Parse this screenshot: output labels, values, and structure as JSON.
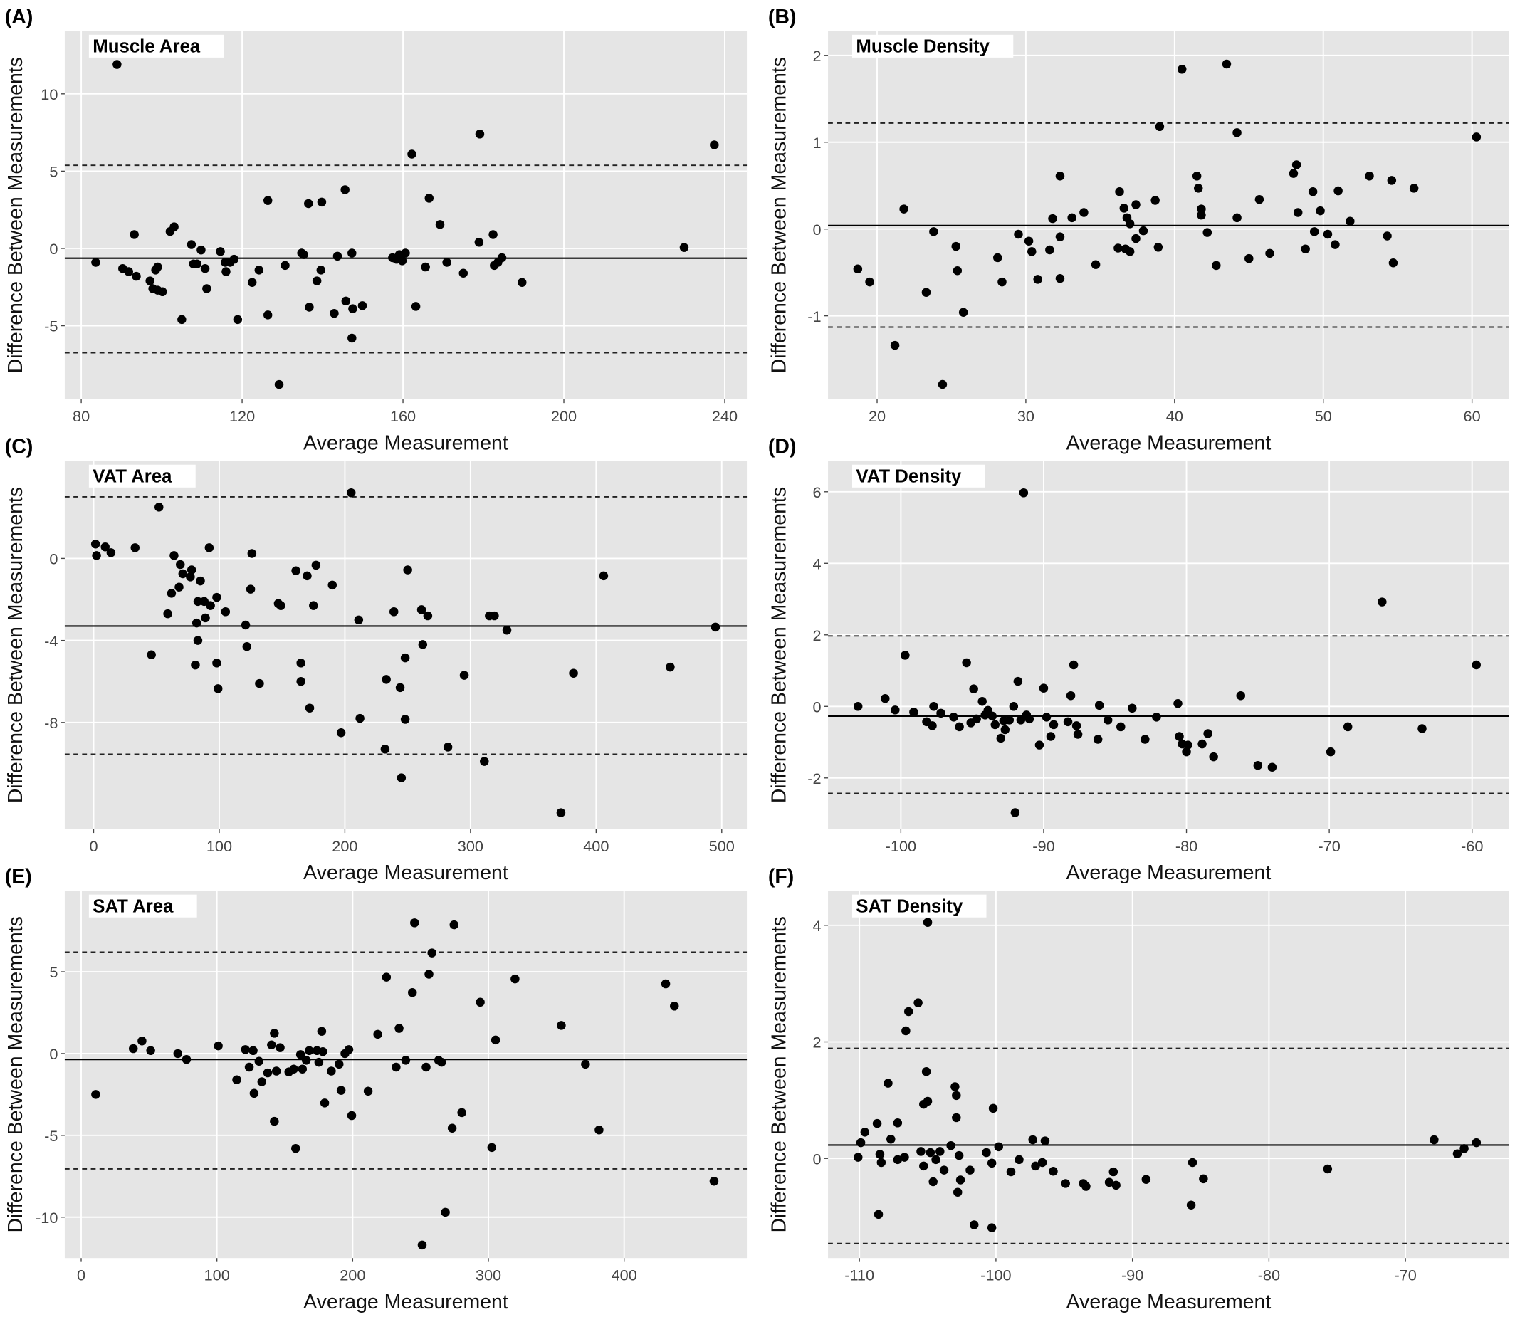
{
  "chart_data": [
    {
      "type": "scatter",
      "panel_label": "(A)",
      "title": "Muscle Area",
      "x_label": "Average Measurement",
      "y_label": "Difference Between Measurements",
      "color": "#000000",
      "grid": true,
      "xlim": [
        75.9,
        245.5
      ],
      "ylim": [
        -9.75,
        14.06
      ],
      "xticks": [
        80,
        120,
        160,
        200,
        240
      ],
      "yticks": [
        -5,
        0,
        5,
        10
      ],
      "mean_line": -0.63,
      "upper_limit": 5.38,
      "lower_limit": -6.75,
      "x": [
        83.6,
        88.9,
        90.3,
        91.8,
        93.2,
        93.7,
        97.1,
        97.8,
        98.5,
        99,
        99,
        100.2,
        102.1,
        103.1,
        105,
        107.4,
        107.9,
        108.8,
        109.8,
        110.8,
        111.2,
        114.6,
        115.8,
        116,
        117,
        118,
        118.9,
        122.5,
        124.2,
        126.4,
        126.4,
        129.2,
        130.7,
        134.8,
        135.3,
        136.5,
        136.7,
        138.6,
        139.6,
        139.8,
        142.9,
        143.7,
        145.6,
        145.8,
        147.3,
        147.3,
        147.5,
        149.9,
        157.4,
        158.4,
        159.1,
        159.8,
        160.6,
        162.2,
        163.2,
        165.6,
        166.5,
        169.2,
        170.9,
        175,
        178.9,
        179.1,
        182.4,
        182.7,
        183.6,
        184.6,
        189.6,
        229.9,
        237.4
      ],
      "values": [
        -0.9,
        11.9,
        -1.3,
        -1.5,
        0.9,
        -1.8,
        -2.1,
        -2.6,
        -1.4,
        -1.2,
        -2.7,
        -2.8,
        1.1,
        1.4,
        -4.6,
        0.25,
        -1,
        -1,
        -0.1,
        -1.3,
        -2.6,
        -0.2,
        -0.9,
        -1.5,
        -0.9,
        -0.7,
        -4.6,
        -2.2,
        -1.4,
        3.1,
        -4.3,
        -8.8,
        -1.1,
        -0.3,
        -0.4,
        2.9,
        -3.8,
        -2.1,
        -1.4,
        3,
        -4.2,
        -0.5,
        3.8,
        -3.4,
        -0.3,
        -5.8,
        -3.9,
        -3.7,
        -0.6,
        -0.7,
        -0.4,
        -0.8,
        -0.3,
        6.1,
        -3.75,
        -1.2,
        3.25,
        1.55,
        -0.9,
        -1.6,
        0.4,
        7.4,
        0.9,
        -1.1,
        -0.9,
        -0.6,
        -2.2,
        0.06,
        6.7
      ]
    },
    {
      "type": "scatter",
      "panel_label": "(B)",
      "title": "Muscle Density",
      "x_label": "Average Measurement",
      "y_label": "Difference Between Measurements",
      "color": "#000000",
      "grid": true,
      "xlim": [
        16.7,
        62.5
      ],
      "ylim": [
        -1.96,
        2.28
      ],
      "xticks": [
        20,
        30,
        40,
        50,
        60
      ],
      "yticks": [
        -1,
        0,
        1,
        2
      ],
      "mean_line": 0.04,
      "upper_limit": 1.22,
      "lower_limit": -1.13,
      "x": [
        18.7,
        19.5,
        21.2,
        21.8,
        23.3,
        23.8,
        24.4,
        25.3,
        25.4,
        25.8,
        28.1,
        28.4,
        29.5,
        30.2,
        30.4,
        30.8,
        31.6,
        31.8,
        32.3,
        32.3,
        32.3,
        33.1,
        33.9,
        34.7,
        36.3,
        36.2,
        36.6,
        36.7,
        36.8,
        37,
        37,
        37.4,
        37.4,
        37.9,
        38.7,
        38.9,
        39,
        40.5,
        41.5,
        41.6,
        41.8,
        41.8,
        42.2,
        42.8,
        43.5,
        44.2,
        44.2,
        45,
        45.7,
        46.4,
        48,
        48.2,
        48.3,
        48.8,
        49.3,
        49.4,
        49.8,
        50.3,
        50.8,
        51,
        51.8,
        53.1,
        54.3,
        54.6,
        54.7,
        56.1,
        60.3
      ],
      "values": [
        -0.46,
        -0.61,
        -1.34,
        0.23,
        -0.73,
        -0.03,
        -1.79,
        -0.2,
        -0.48,
        -0.96,
        -0.33,
        -0.61,
        -0.06,
        -0.14,
        -0.26,
        -0.58,
        -0.24,
        0.12,
        0.61,
        -0.09,
        -0.57,
        0.13,
        0.19,
        -0.41,
        0.43,
        -0.22,
        0.24,
        -0.23,
        0.13,
        0.06,
        -0.26,
        0.28,
        -0.11,
        -0.02,
        0.33,
        -0.21,
        1.18,
        1.84,
        0.61,
        0.47,
        0.23,
        0.16,
        -0.04,
        -0.42,
        1.9,
        1.11,
        0.13,
        -0.34,
        0.34,
        -0.28,
        0.64,
        0.74,
        0.19,
        -0.23,
        0.43,
        -0.03,
        0.21,
        -0.06,
        -0.18,
        0.44,
        0.09,
        0.61,
        -0.08,
        0.56,
        -0.39,
        0.47,
        1.06
      ]
    },
    {
      "type": "scatter",
      "panel_label": "(C)",
      "title": "VAT Area",
      "x_label": "Average Measurement",
      "y_label": "Difference Between Measurements",
      "color": "#000000",
      "grid": true,
      "xlim": [
        -23,
        520
      ],
      "ylim": [
        -13.2,
        4.75
      ],
      "xticks": [
        0,
        100,
        200,
        300,
        400,
        500
      ],
      "yticks": [
        -8,
        -4,
        0
      ],
      "mean_line": -3.3,
      "upper_limit": 3.0,
      "lower_limit": -9.55,
      "x": [
        1.5,
        2.3,
        9.2,
        13.8,
        33,
        46,
        52,
        59,
        62,
        64,
        68,
        69,
        71,
        77,
        78,
        81,
        82,
        83,
        83,
        85,
        88,
        89,
        92,
        93,
        98,
        98,
        99,
        105,
        121,
        122,
        125,
        126,
        132,
        147,
        149,
        161,
        165,
        165,
        170,
        172,
        175,
        177,
        190,
        197,
        205,
        211,
        212,
        232,
        233,
        239,
        244,
        245,
        248,
        248,
        250,
        261,
        262,
        266,
        282,
        295,
        311,
        315,
        319,
        329,
        372,
        382,
        406,
        459,
        495
      ],
      "values": [
        0.7,
        0.14,
        0.56,
        0.28,
        0.52,
        -4.7,
        2.5,
        -2.7,
        -1.7,
        0.14,
        -1.4,
        -0.3,
        -0.75,
        -0.9,
        -0.56,
        -5.2,
        -3.15,
        -4,
        -2.1,
        -1.1,
        -2.1,
        -2.9,
        0.52,
        -2.3,
        -5.1,
        -1.9,
        -6.35,
        -2.6,
        -3.25,
        -4.3,
        -1.5,
        0.24,
        -6.1,
        -2.2,
        -2.3,
        -0.6,
        -5.1,
        -6,
        -0.85,
        -7.3,
        -2.3,
        -0.33,
        -1.3,
        -8.5,
        3.2,
        -3,
        -7.8,
        -9.3,
        -5.9,
        -2.6,
        -6.3,
        -10.7,
        -4.85,
        -7.85,
        -0.56,
        -2.5,
        -4.2,
        -2.8,
        -9.2,
        -5.7,
        -9.9,
        -2.8,
        -2.8,
        -3.5,
        -12.4,
        -5.6,
        -0.85,
        -5.3,
        -3.35
      ]
    },
    {
      "type": "scatter",
      "panel_label": "(D)",
      "title": "VAT Density",
      "x_label": "Average Measurement",
      "y_label": "Difference Between Measurements",
      "color": "#000000",
      "grid": true,
      "xlim": [
        -105.1,
        -57.4
      ],
      "ylim": [
        -3.43,
        6.86
      ],
      "xticks": [
        -100,
        -90,
        -80,
        -70,
        -60
      ],
      "yticks": [
        -2,
        0,
        2,
        4,
        6
      ],
      "mean_line": -0.27,
      "upper_limit": 1.97,
      "lower_limit": -2.43,
      "x": [
        -103,
        -101.1,
        -100.4,
        -99.7,
        -99.1,
        -98.2,
        -97.8,
        -97.7,
        -97.2,
        -96.3,
        -95.9,
        -95.4,
        -95.1,
        -94.9,
        -94.7,
        -94.3,
        -94.1,
        -93.9,
        -93.6,
        -93.4,
        -93,
        -92.8,
        -92.7,
        -92.4,
        -92.1,
        -92,
        -91.8,
        -91.6,
        -91.4,
        -91.2,
        -91,
        -90.3,
        -90,
        -89.8,
        -89.5,
        -89.3,
        -88.3,
        -88.1,
        -87.9,
        -87.7,
        -87.6,
        -86.1,
        -86.2,
        -85.5,
        -84.6,
        -83.8,
        -82.9,
        -82.1,
        -80.6,
        -80.5,
        -80.3,
        -80,
        -79.9,
        -78.9,
        -78.5,
        -78.1,
        -76.2,
        -75,
        -74,
        -69.9,
        -68.7,
        -66.3,
        -63.5,
        -59.7
      ],
      "values": [
        0,
        0.22,
        -0.1,
        1.43,
        -0.16,
        -0.43,
        -0.54,
        0,
        -0.19,
        -0.3,
        -0.57,
        1.22,
        -0.46,
        0.49,
        -0.35,
        0.14,
        -0.24,
        -0.11,
        -0.27,
        -0.51,
        -0.89,
        -0.4,
        -0.65,
        -0.38,
        0,
        -2.97,
        0.7,
        -0.38,
        5.97,
        -0.24,
        -0.35,
        -1.08,
        0.51,
        -0.3,
        -0.84,
        -0.51,
        -0.43,
        0.3,
        1.16,
        -0.54,
        -0.78,
        0.03,
        -0.92,
        -0.38,
        -0.57,
        -0.05,
        -0.92,
        -0.3,
        0.08,
        -0.84,
        -1.05,
        -1.27,
        -1.08,
        -1.05,
        -0.76,
        -1.41,
        0.3,
        -1.65,
        -1.7,
        -1.27,
        -0.57,
        2.92,
        -0.62,
        1.16
      ]
    },
    {
      "type": "scatter",
      "panel_label": "(E)",
      "title": "SAT Area",
      "x_label": "Average Measurement",
      "y_label": "Difference Between Measurements",
      "color": "#000000",
      "grid": true,
      "xlim": [
        -12.1,
        490.4
      ],
      "ylim": [
        -12.5,
        9.94
      ],
      "xticks": [
        0,
        100,
        200,
        300,
        400
      ],
      "yticks": [
        -10,
        -5,
        0,
        5
      ],
      "mean_line": -0.36,
      "upper_limit": 6.2,
      "lower_limit": -7.05,
      "x": [
        10.7,
        38.4,
        44.8,
        51.2,
        71.2,
        77.6,
        101,
        114.6,
        121,
        123.8,
        126.7,
        127.4,
        131,
        133.1,
        137.4,
        140.2,
        142.3,
        142.3,
        143.8,
        146.6,
        153,
        156.6,
        158,
        161.6,
        163,
        165.8,
        168,
        173.7,
        175.1,
        177.2,
        178,
        179.4,
        184.3,
        190,
        191.5,
        194.3,
        197.2,
        199.3,
        211.4,
        218.5,
        224.9,
        232,
        234.2,
        239.1,
        244,
        245.6,
        254.1,
        251.2,
        256.2,
        258.4,
        263.3,
        265.5,
        268.3,
        273.3,
        274.7,
        280.4,
        294,
        302.5,
        305.3,
        319.6,
        353.7,
        371.5,
        381.5,
        430.6,
        437,
        466.2
      ],
      "values": [
        -2.5,
        0.3,
        0.77,
        0.18,
        0,
        -0.36,
        0.47,
        -1.6,
        0.24,
        -0.83,
        0.18,
        -2.43,
        -0.47,
        -1.72,
        -1.18,
        0.53,
        1.24,
        -4.14,
        -1.07,
        0.36,
        -1.12,
        -0.95,
        -5.8,
        -0.06,
        -0.95,
        -0.41,
        0.18,
        0.18,
        -0.53,
        1.36,
        0.12,
        -3.02,
        -1.07,
        -0.65,
        -2.25,
        0,
        0.24,
        -3.79,
        -2.3,
        1.18,
        4.67,
        -0.83,
        1.54,
        -0.41,
        3.73,
        7.99,
        -0.83,
        -11.7,
        4.85,
        6.15,
        -0.41,
        -0.53,
        -9.7,
        -4.56,
        7.87,
        -3.61,
        3.14,
        -5.74,
        0.83,
        4.56,
        1.72,
        -0.65,
        -4.67,
        4.26,
        2.9,
        -7.8
      ]
    },
    {
      "type": "scatter",
      "panel_label": "(F)",
      "title": "SAT Density",
      "x_label": "Average Measurement",
      "y_label": "Difference Between Measurements",
      "color": "#000000",
      "grid": true,
      "xlim": [
        -112.3,
        -62.4
      ],
      "ylim": [
        -1.71,
        4.59
      ],
      "xticks": [
        -110,
        -100,
        -90,
        -80,
        -70
      ],
      "yticks": [
        0,
        2,
        4
      ],
      "mean_line": 0.23,
      "upper_limit": 1.89,
      "lower_limit": -1.46,
      "x": [
        -110.1,
        -109.9,
        -109.6,
        -108.7,
        -108.6,
        -108.5,
        -108.4,
        -107.9,
        -107.7,
        -107.2,
        -107.2,
        -106.7,
        -106.6,
        -106.4,
        -105.7,
        -105.5,
        -105.3,
        -105.3,
        -105.1,
        -105,
        -105,
        -104.8,
        -104.6,
        -104.4,
        -104.1,
        -103.8,
        -103.3,
        -103,
        -102.9,
        -102.9,
        -102.8,
        -102.7,
        -102.6,
        -101.9,
        -101.6,
        -100.7,
        -100.3,
        -100.2,
        -100.3,
        -99.8,
        -98.9,
        -98.3,
        -97.3,
        -97.1,
        -96.6,
        -96.4,
        -95.8,
        -94.9,
        -93.6,
        -93.4,
        -91.7,
        -91.4,
        -91.2,
        -89,
        -85.6,
        -85.7,
        -84.8,
        -75.7,
        -67.9,
        -66.2,
        -65.7,
        -64.8
      ],
      "values": [
        0.02,
        0.27,
        0.45,
        0.6,
        -0.96,
        0.07,
        -0.07,
        1.29,
        0.33,
        0.61,
        -0.02,
        0.02,
        2.19,
        2.52,
        2.67,
        0.12,
        0.93,
        -0.13,
        1.49,
        0.98,
        4.05,
        0.1,
        -0.4,
        -0.02,
        0.12,
        -0.2,
        0.22,
        1.23,
        0.7,
        1.08,
        -0.58,
        0.05,
        -0.37,
        -0.2,
        -1.14,
        0.1,
        -0.08,
        0.86,
        -1.19,
        0.2,
        -0.23,
        -0.02,
        0.32,
        -0.13,
        -0.07,
        0.3,
        -0.22,
        -0.43,
        -0.43,
        -0.48,
        -0.41,
        -0.23,
        -0.46,
        -0.36,
        -0.07,
        -0.8,
        -0.35,
        -0.18,
        0.32,
        0.08,
        0.17,
        0.27
      ]
    }
  ]
}
